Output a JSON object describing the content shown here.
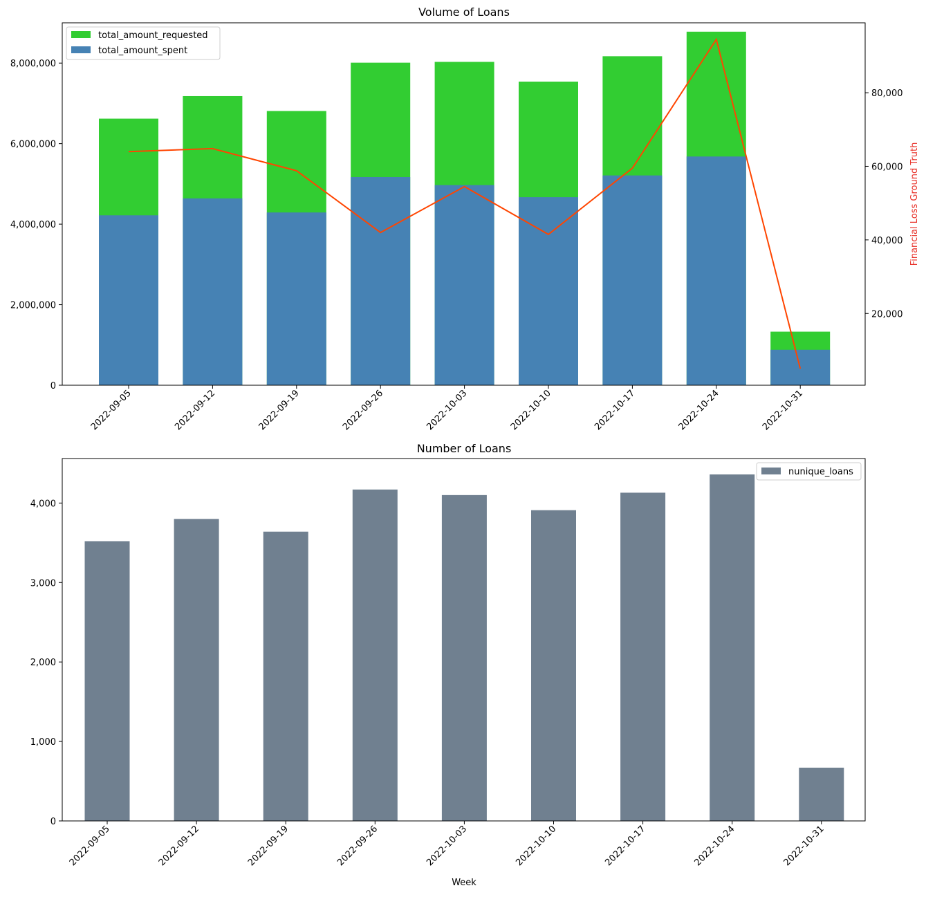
{
  "chart_data": [
    {
      "type": "bar",
      "title": "Volume of Loans",
      "xlabel": "",
      "ylabel": "",
      "y2label": "Financial Loss Ground Truth",
      "stacked": false,
      "categories": [
        "2022-09-05",
        "2022-09-12",
        "2022-09-19",
        "2022-09-26",
        "2022-10-03",
        "2022-10-10",
        "2022-10-17",
        "2022-10-24",
        "2022-10-31"
      ],
      "series": [
        {
          "name": "total_amount_requested",
          "kind": "bar",
          "axis": "left",
          "color": "#32cd32",
          "values": [
            6620000,
            7180000,
            6810000,
            8010000,
            8030000,
            7540000,
            8170000,
            8780000,
            1330000
          ]
        },
        {
          "name": "total_amount_spent",
          "kind": "bar",
          "axis": "left",
          "color": "#4682b4",
          "values": [
            4220000,
            4640000,
            4290000,
            5170000,
            4970000,
            4670000,
            5210000,
            5680000,
            880000
          ]
        },
        {
          "kind": "line",
          "axis": "right",
          "color": "#ff4500",
          "values": [
            64000,
            64800,
            58800,
            42000,
            54500,
            41500,
            59500,
            94500,
            5000
          ]
        }
      ],
      "ylim": [
        0,
        9000000
      ],
      "yticks": [
        0,
        2000000,
        4000000,
        6000000,
        8000000
      ],
      "ytick_labels": [
        "0",
        "2,000,000",
        "4,000,000",
        "6,000,000",
        "8,000,000"
      ],
      "y2lim": [
        500,
        99000
      ],
      "y2ticks": [
        20000,
        40000,
        60000,
        80000
      ],
      "y2tick_labels": [
        "20,000",
        "40,000",
        "60,000",
        "80,000"
      ],
      "legend": {
        "position": "top-left",
        "entries": [
          "total_amount_requested",
          "total_amount_spent"
        ]
      },
      "grid": false
    },
    {
      "type": "bar",
      "title": "Number of Loans",
      "xlabel": "Week",
      "ylabel": "",
      "categories": [
        "2022-09-05",
        "2022-09-12",
        "2022-09-19",
        "2022-09-26",
        "2022-10-03",
        "2022-10-10",
        "2022-10-17",
        "2022-10-24",
        "2022-10-31"
      ],
      "series": [
        {
          "name": "nunique_loans",
          "color": "#708090",
          "values": [
            3520,
            3800,
            3640,
            4170,
            4100,
            3910,
            4130,
            4360,
            670
          ]
        }
      ],
      "ylim": [
        0,
        4560
      ],
      "yticks": [
        0,
        1000,
        2000,
        3000,
        4000
      ],
      "ytick_labels": [
        "0",
        "1,000",
        "2,000",
        "3,000",
        "4,000"
      ],
      "legend": {
        "position": "top-right",
        "entries": [
          "nunique_loans"
        ]
      },
      "grid": false
    }
  ]
}
